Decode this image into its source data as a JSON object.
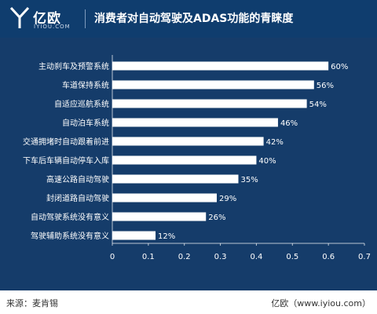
{
  "header": {
    "logo_text": "亿欧",
    "logo_sub": "IYIOU.COM",
    "title": "消费者对自动驾驶及ADAS功能的青睐度"
  },
  "footer": {
    "source": "来源：麦肯锡",
    "site": "亿欧（www.iyiou.com）"
  },
  "colors": {
    "header_bg": "#0f3d6e",
    "chart_bg": "#153c6a",
    "bar": "#ffffff",
    "text": "#ffffff"
  },
  "chart_data": {
    "type": "bar",
    "orientation": "horizontal",
    "title": "消费者对自动驾驶及ADAS功能的青睐度",
    "categories": [
      "主动刹车及预警系统",
      "车道保持系统",
      "自适应巡航系统",
      "自动泊车系统",
      "交通拥堵时自动跟着前进",
      "下车后车辆自动停车入库",
      "高速公路自动驾驶",
      "封闭道路自动驾驶",
      "自动驾驶系统没有意义",
      "驾驶辅助系统没有意义"
    ],
    "values": [
      0.6,
      0.56,
      0.54,
      0.46,
      0.42,
      0.4,
      0.35,
      0.29,
      0.26,
      0.12
    ],
    "data_labels": [
      "60%",
      "56%",
      "54%",
      "46%",
      "42%",
      "40%",
      "35%",
      "29%",
      "26%",
      "12%"
    ],
    "xlim": [
      0,
      0.7
    ],
    "xticks": [
      "0",
      "0.1",
      "0.2",
      "0.3",
      "0.4",
      "0.5",
      "0.6",
      "0.7"
    ],
    "grid": false
  }
}
